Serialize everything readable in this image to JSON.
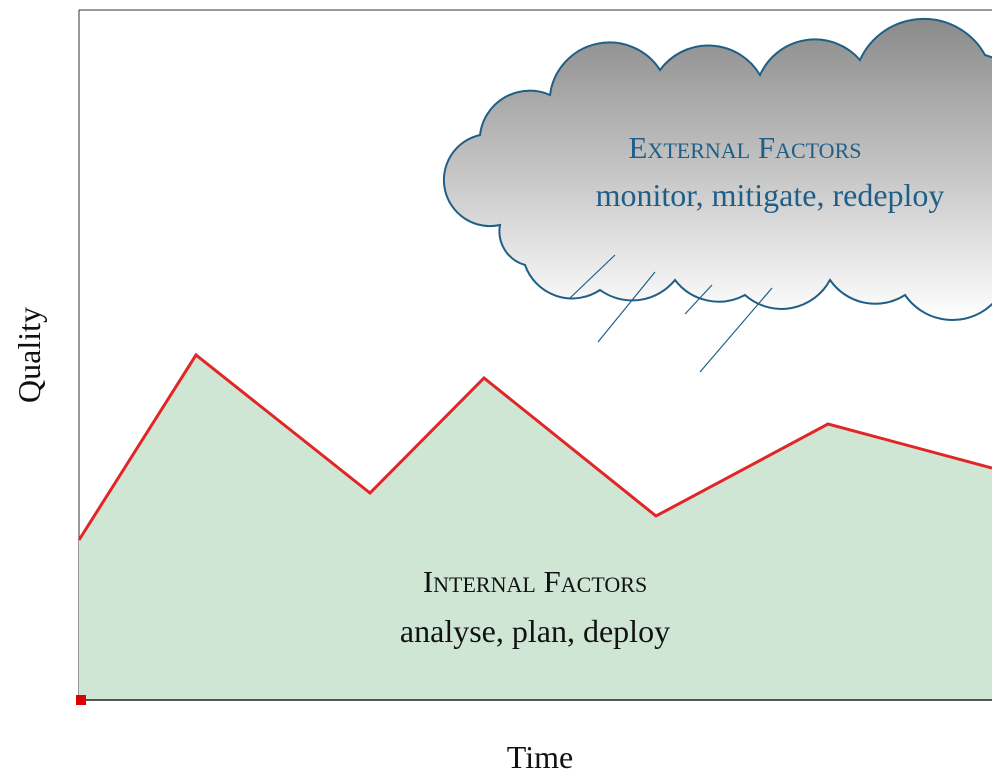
{
  "axes": {
    "y_label": "Quality",
    "x_label": "Time"
  },
  "external": {
    "title": "External Factors",
    "subtitle": "monitor, mitigate, redeploy"
  },
  "internal": {
    "title": "Internal Factors",
    "subtitle": "analyse, plan, deploy"
  }
}
